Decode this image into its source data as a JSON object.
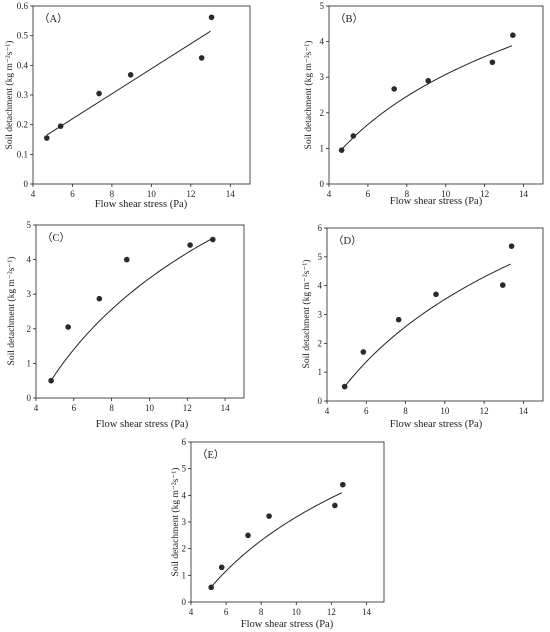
{
  "chart_data": [
    {
      "type": "scatter",
      "panel_label": "（A）",
      "xlabel": "Flow shear stress (Pa)",
      "ylabel": "Soil detachment (kg m⁻²s⁻¹)",
      "xlim": [
        4,
        15
      ],
      "ylim": [
        0,
        0.6
      ],
      "xticks": [
        4,
        6,
        8,
        10,
        12,
        14
      ],
      "yticks": [
        0,
        0.1,
        0.2,
        0.3,
        0.4,
        0.5,
        0.6
      ],
      "x": [
        4.7,
        5.4,
        7.35,
        8.95,
        12.55,
        13.05
      ],
      "y": [
        0.155,
        0.195,
        0.305,
        0.368,
        0.425,
        0.562
      ],
      "fit": {
        "kind": "linear",
        "x": [
          4.7,
          13.0
        ],
        "y": [
          0.165,
          0.515
        ]
      },
      "grid": false,
      "legend": "none"
    },
    {
      "type": "scatter",
      "panel_label": "（B）",
      "xlabel": "Flow shear stress (Pa)",
      "ylabel": "Soil detachment (kg m⁻²s⁻¹)",
      "xlim": [
        4,
        15
      ],
      "ylim": [
        0,
        5
      ],
      "xticks": [
        4,
        6,
        8,
        10,
        12,
        14
      ],
      "yticks": [
        0,
        1,
        2,
        3,
        4,
        5
      ],
      "x": [
        4.65,
        5.25,
        7.35,
        9.1,
        12.4,
        13.45
      ],
      "y": [
        0.95,
        1.35,
        2.67,
        2.9,
        3.42,
        4.18
      ],
      "fit": {
        "kind": "log",
        "x": [
          4.7,
          13.4
        ],
        "y": [
          1.0,
          3.88
        ]
      },
      "grid": false,
      "legend": "none"
    },
    {
      "type": "scatter",
      "panel_label": "（C）",
      "xlabel": "Flow shear stress (Pa)",
      "ylabel": "Soil detachment (kg m⁻²s⁻¹)",
      "xlim": [
        4,
        15
      ],
      "ylim": [
        0,
        5
      ],
      "xticks": [
        4,
        6,
        8,
        10,
        12,
        14
      ],
      "yticks": [
        0,
        1,
        2,
        3,
        4,
        5
      ],
      "x": [
        4.8,
        5.7,
        7.35,
        8.8,
        12.15,
        13.35
      ],
      "y": [
        0.5,
        2.05,
        2.87,
        4.0,
        4.42,
        4.58
      ],
      "fit": {
        "kind": "log",
        "x": [
          4.85,
          13.35
        ],
        "y": [
          0.55,
          4.62
        ]
      },
      "grid": false,
      "legend": "none"
    },
    {
      "type": "scatter",
      "panel_label": "（D）",
      "xlabel": "Flow shear stress (Pa)",
      "ylabel": "Soil detachment (kg m⁻²s⁻¹)",
      "xlim": [
        4,
        15
      ],
      "ylim": [
        0,
        6
      ],
      "xticks": [
        4,
        6,
        8,
        10,
        12,
        14
      ],
      "yticks": [
        0,
        1,
        2,
        3,
        4,
        5,
        6
      ],
      "x": [
        4.9,
        5.85,
        7.65,
        9.55,
        12.95,
        13.4
      ],
      "y": [
        0.5,
        1.7,
        2.82,
        3.7,
        4.02,
        5.37
      ],
      "fit": {
        "kind": "log",
        "x": [
          4.9,
          13.35
        ],
        "y": [
          0.5,
          4.75
        ]
      },
      "grid": false,
      "legend": "none"
    },
    {
      "type": "scatter",
      "panel_label": "（E）",
      "xlabel": "Flow shear stress (Pa)",
      "ylabel": "Soil detachment (kg m⁻²s⁻¹)",
      "xlim": [
        4,
        15
      ],
      "ylim": [
        0,
        6
      ],
      "xticks": [
        4,
        6,
        8,
        10,
        12,
        14
      ],
      "yticks": [
        0,
        1,
        2,
        3,
        4,
        5,
        6
      ],
      "x": [
        5.15,
        5.75,
        7.25,
        8.45,
        12.2,
        12.65
      ],
      "y": [
        0.55,
        1.3,
        2.5,
        3.22,
        3.62,
        4.4
      ],
      "fit": {
        "kind": "log",
        "x": [
          5.2,
          12.6
        ],
        "y": [
          0.6,
          4.1
        ]
      },
      "grid": false,
      "legend": "none"
    }
  ]
}
